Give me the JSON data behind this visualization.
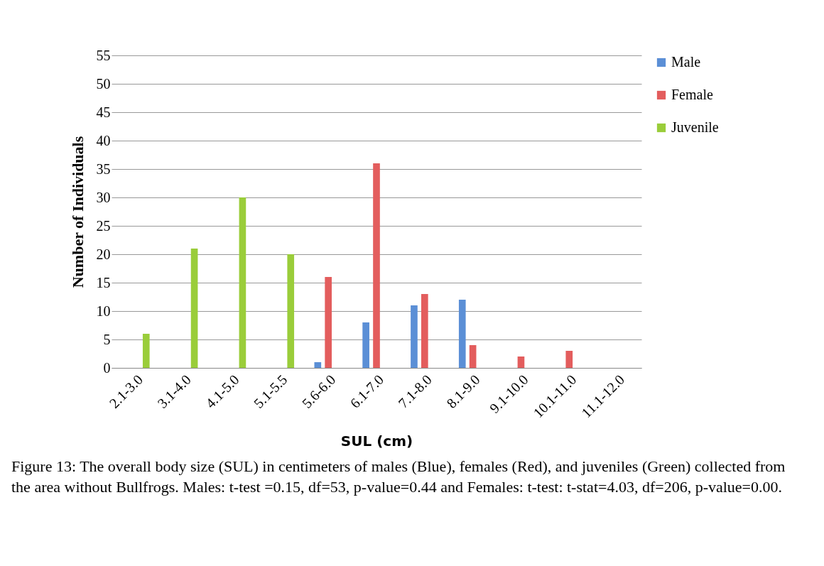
{
  "chart_data": {
    "type": "bar",
    "xlabel": "SUL (cm)",
    "ylabel": "Number of Individuals",
    "categories": [
      "2.1-3.0",
      "3.1-4.0",
      "4.1-5.0",
      "5.1-5.5",
      "5.6-6.0",
      "6.1-7.0",
      "7.1-8.0",
      "8.1-9.0",
      "9.1-10.0",
      "10.1-11.0",
      "11.1-12.0"
    ],
    "series": [
      {
        "name": "Male",
        "color": "#5b8fd6",
        "values": [
          0,
          0,
          0,
          0,
          1,
          8,
          11,
          12,
          0,
          0,
          0
        ]
      },
      {
        "name": "Female",
        "color": "#e35d5d",
        "values": [
          0,
          0,
          0,
          0,
          16,
          36,
          13,
          4,
          2,
          3,
          0
        ]
      },
      {
        "name": "Juvenile",
        "color": "#9acd3a",
        "values": [
          6,
          21,
          30,
          20,
          0,
          0,
          0,
          0,
          0,
          0,
          0
        ]
      }
    ],
    "ylim": [
      0,
      55
    ],
    "yticks": [
      0,
      5,
      10,
      15,
      20,
      25,
      30,
      35,
      40,
      45,
      50,
      55
    ],
    "grid": "y",
    "legend": "right",
    "annotations": [
      "Figure 13: The overall body size (SUL) in centimeters of males (Blue), females (Red), and juveniles (Green) collected from the area without Bullfrogs. Males: t-test =0.15, df=53, p-value=0.44 and Females: t-test: t-stat=4.03, df=206, p-value=0.00."
    ]
  }
}
